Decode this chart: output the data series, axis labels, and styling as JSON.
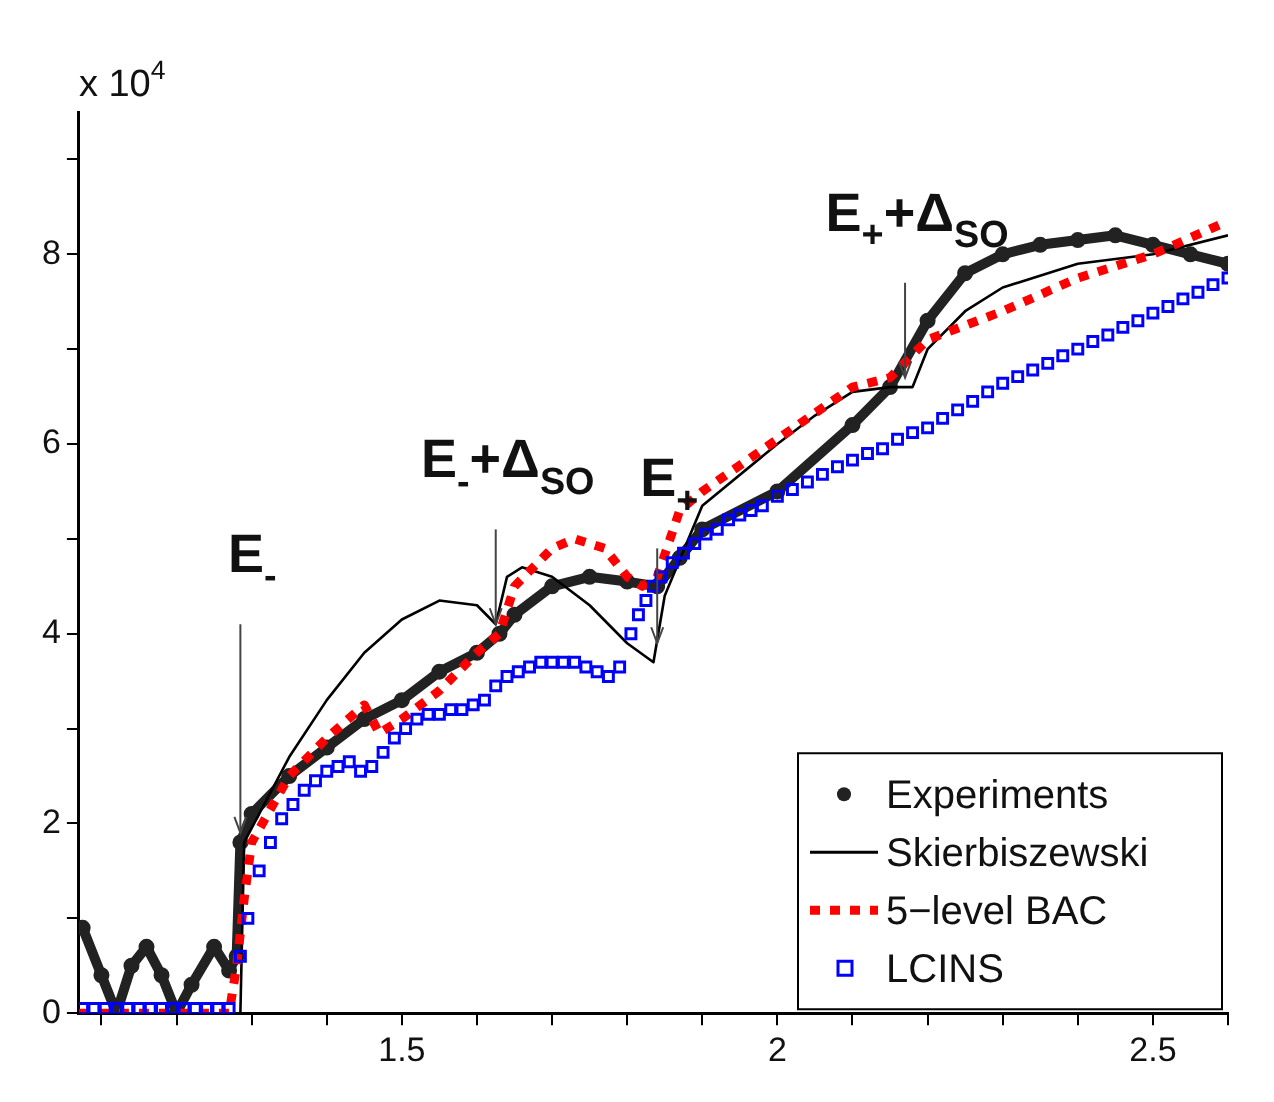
{
  "chart_data": {
    "type": "line",
    "xlim": [
      1.07,
      2.6
    ],
    "ylim": [
      0,
      9.5
    ],
    "xticks": [
      {
        "value": 1.1,
        "label": null
      },
      {
        "value": 1.2,
        "label": null
      },
      {
        "value": 1.3,
        "label": null
      },
      {
        "value": 1.4,
        "label": null
      },
      1.5,
      {
        "value": 1.6,
        "label": null
      },
      {
        "value": 1.7,
        "label": null
      },
      {
        "value": 1.8,
        "label": null
      },
      {
        "value": 1.9,
        "label": null
      },
      2,
      {
        "value": 2.1,
        "label": null
      },
      {
        "value": 2.2,
        "label": null
      },
      {
        "value": 2.3,
        "label": null
      },
      {
        "value": 2.4,
        "label": null
      },
      2.5,
      {
        "value": 2.6,
        "label": null
      }
    ],
    "yticks": [
      0,
      {
        "value": 1,
        "label": null
      },
      2,
      {
        "value": 3,
        "label": null
      },
      4,
      {
        "value": 5,
        "label": null
      },
      6,
      {
        "value": 7,
        "label": null
      },
      8,
      {
        "value": 9,
        "label": null
      }
    ],
    "grid": false,
    "legend": "bottom right",
    "annotations": [
      "x 10$^{4}$",
      {
        "text": "E$_{-}$",
        "x": 1.285,
        "y": 1.9
      },
      {
        "text": "E$_{-}$+Δ$_{SO}$",
        "x": 1.625,
        "y": 4.1
      },
      {
        "text": "E$_{+}$",
        "x": 1.84,
        "y": 3.9
      },
      {
        "text": "E$_{+}$+Δ$_{SO}$",
        "x": 2.17,
        "y": 6.7
      }
    ],
    "series": [
      {
        "name": "Experiments",
        "type": "line",
        "color": "#222222",
        "marker": "circle",
        "line_style": "solid",
        "x": [
          1.075,
          1.1,
          1.12,
          1.14,
          1.16,
          1.18,
          1.2,
          1.22,
          1.25,
          1.27,
          1.28,
          1.285,
          1.3,
          1.35,
          1.4,
          1.45,
          1.5,
          1.55,
          1.6,
          1.63,
          1.65,
          1.7,
          1.75,
          1.8,
          1.84,
          1.87,
          1.9,
          2.0,
          2.1,
          2.15,
          2.2,
          2.25,
          2.3,
          2.35,
          2.4,
          2.45,
          2.5,
          2.55,
          2.6
        ],
        "values": [
          0.9,
          0.4,
          0.0,
          0.5,
          0.7,
          0.4,
          0.0,
          0.3,
          0.7,
          0.45,
          0.6,
          1.8,
          2.1,
          2.5,
          2.8,
          3.1,
          3.3,
          3.6,
          3.8,
          4.0,
          4.2,
          4.5,
          4.6,
          4.55,
          4.5,
          4.8,
          5.1,
          5.5,
          6.2,
          6.6,
          7.3,
          7.8,
          8.0,
          8.1,
          8.15,
          8.2,
          8.1,
          8.0,
          7.9
        ]
      },
      {
        "name": "Skierbiszewski",
        "type": "line",
        "color": "#000000",
        "marker": "none",
        "line_style": "solid",
        "x": [
          1.07,
          1.285,
          1.29,
          1.35,
          1.4,
          1.45,
          1.5,
          1.55,
          1.6,
          1.625,
          1.64,
          1.66,
          1.7,
          1.75,
          1.8,
          1.835,
          1.85,
          1.9,
          2.0,
          2.05,
          2.1,
          2.15,
          2.18,
          2.2,
          2.25,
          2.3,
          2.4,
          2.5,
          2.6
        ],
        "values": [
          0,
          0,
          1.8,
          2.7,
          3.3,
          3.8,
          4.15,
          4.35,
          4.3,
          4.1,
          4.6,
          4.7,
          4.6,
          4.3,
          3.9,
          3.7,
          4.4,
          5.35,
          6.0,
          6.3,
          6.55,
          6.6,
          6.6,
          7.0,
          7.4,
          7.65,
          7.9,
          8.0,
          8.2
        ]
      },
      {
        "name": "5−level BAC",
        "type": "line",
        "color": "#ff0000",
        "marker": "none",
        "line_style": "dotted",
        "x": [
          1.07,
          1.27,
          1.28,
          1.29,
          1.3,
          1.35,
          1.4,
          1.45,
          1.47,
          1.5,
          1.55,
          1.6,
          1.63,
          1.65,
          1.7,
          1.73,
          1.77,
          1.8,
          1.82,
          1.84,
          1.87,
          1.9,
          2.0,
          2.1,
          2.15,
          2.2,
          2.3,
          2.4,
          2.5,
          2.6
        ],
        "values": [
          0,
          0,
          0.5,
          1.2,
          1.8,
          2.5,
          2.9,
          3.25,
          2.95,
          3.1,
          3.4,
          3.8,
          4.0,
          4.5,
          4.9,
          5.0,
          4.9,
          4.6,
          4.5,
          4.6,
          5.3,
          5.5,
          6.05,
          6.6,
          6.7,
          7.1,
          7.4,
          7.75,
          8.0,
          8.35
        ]
      },
      {
        "name": "LCINS",
        "type": "scatter",
        "color": "#0000ff",
        "marker": "square",
        "x": [
          1.075,
          1.09,
          1.105,
          1.12,
          1.135,
          1.15,
          1.165,
          1.18,
          1.195,
          1.21,
          1.225,
          1.24,
          1.255,
          1.27,
          1.285,
          1.295,
          1.31,
          1.325,
          1.34,
          1.355,
          1.37,
          1.385,
          1.4,
          1.415,
          1.43,
          1.445,
          1.46,
          1.475,
          1.49,
          1.505,
          1.52,
          1.535,
          1.55,
          1.565,
          1.58,
          1.595,
          1.61,
          1.625,
          1.64,
          1.655,
          1.67,
          1.685,
          1.7,
          1.715,
          1.73,
          1.745,
          1.76,
          1.775,
          1.79,
          1.805,
          1.815,
          1.825,
          1.835,
          1.845,
          1.86,
          1.875,
          1.89,
          1.905,
          1.92,
          1.935,
          1.95,
          1.965,
          1.98,
          2.0,
          2.02,
          2.04,
          2.06,
          2.08,
          2.1,
          2.12,
          2.14,
          2.16,
          2.18,
          2.2,
          2.22,
          2.24,
          2.26,
          2.28,
          2.3,
          2.32,
          2.34,
          2.36,
          2.38,
          2.4,
          2.42,
          2.44,
          2.46,
          2.48,
          2.5,
          2.52,
          2.54,
          2.56,
          2.58,
          2.6
        ],
        "values": [
          0.05,
          0.05,
          0.05,
          0.05,
          0.05,
          0.05,
          0.05,
          0.05,
          0.05,
          0.05,
          0.05,
          0.05,
          0.05,
          0.05,
          0.6,
          1.0,
          1.5,
          1.8,
          2.05,
          2.2,
          2.35,
          2.45,
          2.55,
          2.6,
          2.65,
          2.55,
          2.6,
          2.75,
          2.9,
          3.0,
          3.1,
          3.15,
          3.15,
          3.2,
          3.2,
          3.25,
          3.3,
          3.45,
          3.55,
          3.6,
          3.65,
          3.7,
          3.7,
          3.7,
          3.7,
          3.65,
          3.6,
          3.55,
          3.65,
          4.0,
          4.2,
          4.35,
          4.5,
          4.6,
          4.75,
          4.85,
          4.95,
          5.05,
          5.1,
          5.2,
          5.25,
          5.3,
          5.35,
          5.45,
          5.52,
          5.6,
          5.68,
          5.76,
          5.83,
          5.9,
          5.95,
          6.05,
          6.12,
          6.17,
          6.27,
          6.36,
          6.45,
          6.55,
          6.64,
          6.71,
          6.78,
          6.85,
          6.93,
          7.0,
          7.08,
          7.15,
          7.23,
          7.3,
          7.38,
          7.45,
          7.53,
          7.6,
          7.68,
          7.75
        ]
      }
    ]
  }
}
